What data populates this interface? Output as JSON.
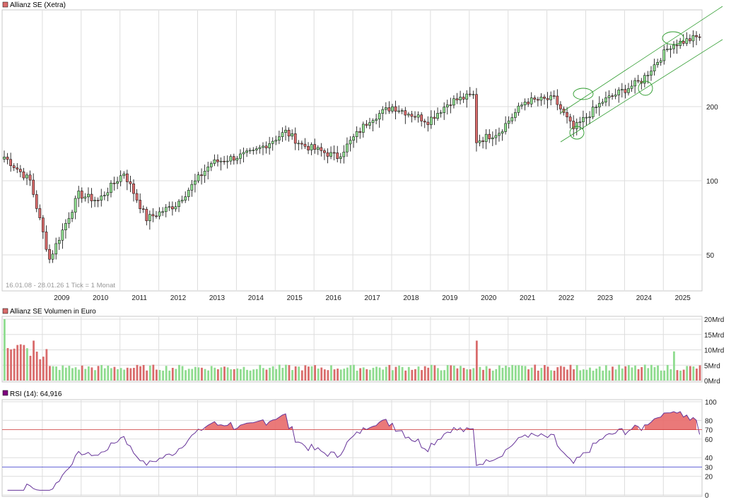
{
  "panels": {
    "price": {
      "title": "Allianz SE (Xetra)",
      "title_color": "#d9534f",
      "info_text": "16.01.08 - 28.01.26   1 Tick = 1 Monat",
      "y_ticks": [
        "50",
        "100",
        "200"
      ]
    },
    "volume": {
      "title": "Allianz SE Volumen in Euro",
      "title_color": "#d9534f",
      "y_ticks": [
        "0Mrd",
        "5Mrd",
        "10Mrd",
        "15Mrd",
        "20Mrd"
      ]
    },
    "rsi": {
      "title": "RSI (14): 64,916",
      "title_color": "#800080",
      "y_ticks": [
        "0",
        "20",
        "30",
        "40",
        "60",
        "70",
        "80",
        "100"
      ],
      "overbought": 70,
      "oversold": 30,
      "overbought_color": "#cc3333",
      "oversold_color": "#3333cc"
    }
  },
  "x_axis": {
    "labels": [
      "2009",
      "2010",
      "2011",
      "2012",
      "2013",
      "2014",
      "2015",
      "2016",
      "2017",
      "2018",
      "2019",
      "2020",
      "2021",
      "2022",
      "2023",
      "2024",
      "2025"
    ]
  },
  "colors": {
    "up": "#8fdc8f",
    "down": "#d96b6b",
    "wick": "#000000",
    "rsi_line": "#663399",
    "channel": "#2a9a2a"
  },
  "chart_data": [
    {
      "type": "candlestick",
      "title": "Allianz SE (Xetra)",
      "period": "monthly",
      "y_scale": "log",
      "ylim": [
        40,
        320
      ],
      "x_range": [
        "2008-01",
        "2026-01"
      ],
      "anchor_points": [
        {
          "date": "2008-01",
          "close": 125
        },
        {
          "date": "2008-09",
          "close": 100
        },
        {
          "date": "2009-03",
          "close": 48
        },
        {
          "date": "2009-12",
          "close": 88
        },
        {
          "date": "2010-06",
          "close": 83
        },
        {
          "date": "2011-02",
          "close": 108
        },
        {
          "date": "2011-09",
          "close": 70
        },
        {
          "date": "2012-06",
          "close": 80
        },
        {
          "date": "2013-05",
          "close": 118
        },
        {
          "date": "2014-06",
          "close": 130
        },
        {
          "date": "2015-04",
          "close": 158
        },
        {
          "date": "2015-09",
          "close": 140
        },
        {
          "date": "2016-02",
          "close": 133
        },
        {
          "date": "2016-08",
          "close": 125
        },
        {
          "date": "2017-06",
          "close": 178
        },
        {
          "date": "2018-01",
          "close": 200
        },
        {
          "date": "2018-12",
          "close": 175
        },
        {
          "date": "2019-07",
          "close": 210
        },
        {
          "date": "2020-02",
          "close": 222
        },
        {
          "date": "2020-03",
          "close": 145
        },
        {
          "date": "2020-10",
          "close": 158
        },
        {
          "date": "2021-06",
          "close": 210
        },
        {
          "date": "2022-03",
          "close": 215
        },
        {
          "date": "2022-09",
          "close": 162
        },
        {
          "date": "2023-06",
          "close": 210
        },
        {
          "date": "2024-06",
          "close": 255
        },
        {
          "date": "2025-03",
          "close": 355
        },
        {
          "date": "2025-12",
          "close": 385
        }
      ],
      "annotations": [
        "upward trend channel (two parallel lines)",
        "four ellipse markers on channel touches"
      ]
    },
    {
      "type": "bar",
      "title": "Allianz SE Volumen in Euro",
      "unit": "Mrd EUR",
      "ylim": [
        0,
        20
      ],
      "notable_values": [
        {
          "date": "2008-01",
          "value": 20
        },
        {
          "date": "2008-10",
          "value": 13
        },
        {
          "date": "2020-03",
          "value": 13
        },
        {
          "date": "2025-04",
          "value": 9.5
        }
      ],
      "typical_value": 4
    },
    {
      "type": "line",
      "title": "RSI (14): 64,916",
      "ylim": [
        0,
        100
      ],
      "last_value": 64.916,
      "reference_lines": [
        30,
        70
      ]
    }
  ]
}
